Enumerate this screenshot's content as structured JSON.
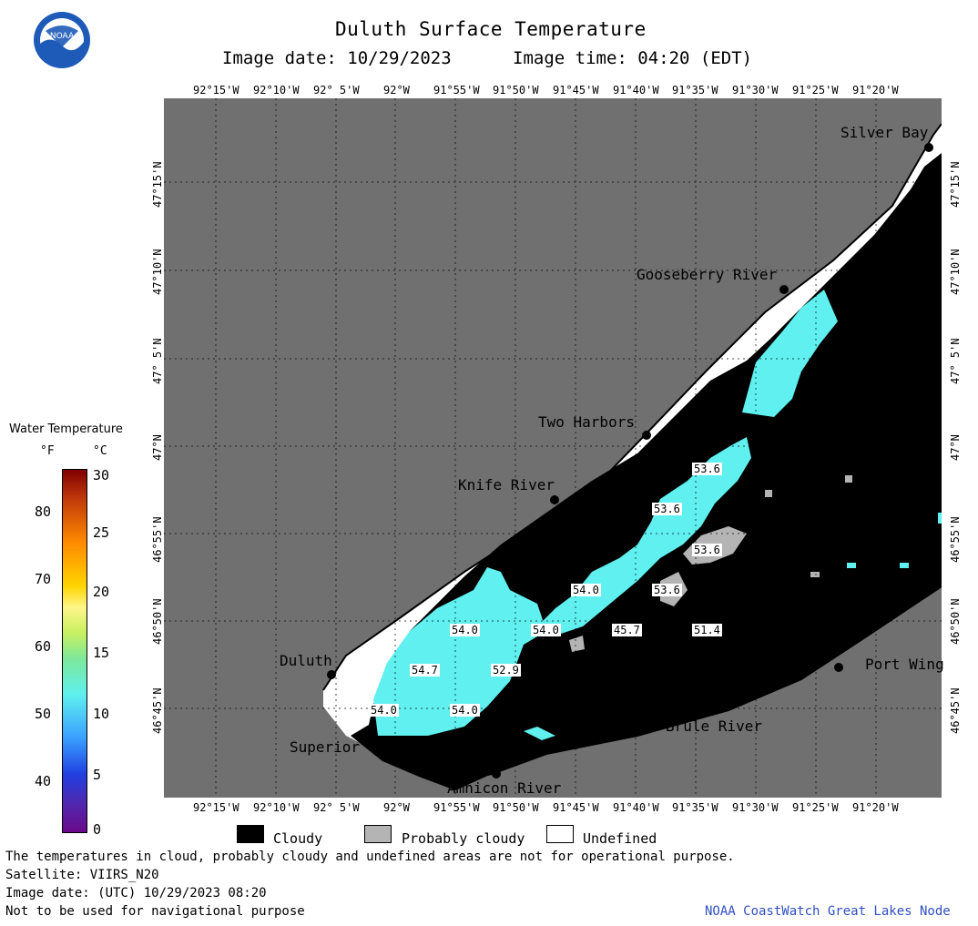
{
  "header": {
    "title": "Duluth Surface Temperature",
    "image_date": "Image date: 10/29/2023",
    "image_time": "Image time: 04:20 (EDT)"
  },
  "logo": {
    "text": "NOAA"
  },
  "longitude_labels": [
    "92°15'W",
    "92°10'W",
    "92° 5'W",
    "92°W",
    "91°55'W",
    "91°50'W",
    "91°45'W",
    "91°40'W",
    "91°35'W",
    "91°30'W",
    "91°25'W",
    "91°20'W"
  ],
  "latitude_labels": [
    "47°15'N",
    "47°10'N",
    "47° 5'N",
    "47°N",
    "46°55'N",
    "46°50'N",
    "46°45'N"
  ],
  "places": {
    "silver_bay": "Silver Bay",
    "gooseberry": "Gooseberry River",
    "two_harbors": "Two Harbors",
    "knife_river": "Knife River",
    "duluth": "Duluth",
    "superior": "Superior",
    "amnicon": "Amnicon River",
    "brule": "Brule River",
    "port_wing": "Port Wing"
  },
  "temps": {
    "t1": "53.6",
    "t2": "53.6",
    "t3": "53.6",
    "t4": "53.6",
    "t5": "54.0",
    "t6": "54.0",
    "t7": "54.0",
    "t8": "45.7",
    "t9": "51.4",
    "t10": "54.7",
    "t11": "52.9",
    "t12": "54.0",
    "t13": "54.0"
  },
  "colorbar": {
    "title": "Water Temperature",
    "unit_f": "°F",
    "unit_c": "°C",
    "f_ticks": [
      "80",
      "70",
      "60",
      "50",
      "40"
    ],
    "c_ticks": [
      "30",
      "25",
      "20",
      "15",
      "10",
      "5",
      "0"
    ]
  },
  "legend": {
    "cloudy": "Cloudy",
    "probably_cloudy": "Probably cloudy",
    "undefined": "Undefined"
  },
  "footer": {
    "note": "The temperatures in cloud, probably cloudy and undefined areas are not for operational purpose.",
    "satellite": "Satellite: VIIRS_N20",
    "utc_date": "Image date: (UTC) 10/29/2023  08:20",
    "nav": "Not to be used for navigational purpose",
    "credit": "NOAA CoastWatch Great Lakes Node"
  },
  "colors": {
    "land": "#707070",
    "cloud": "#000000",
    "water": "#5ff0ef",
    "undefined": "#ffffff",
    "probably_cloudy": "#b4b4b4",
    "credit": "#3050c0"
  }
}
